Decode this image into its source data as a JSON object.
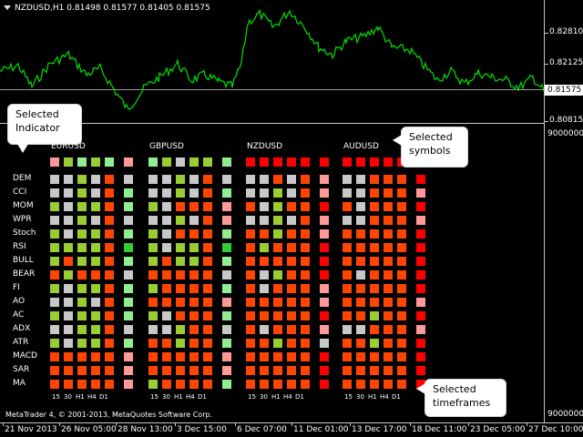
{
  "price_pane": {
    "title": "NZDUSD,H1  0.81498 0.81577 0.81405 0.81575",
    "axis_labels": [
      "0.82810",
      "0.82125",
      "0.80815"
    ],
    "current_price": "0.81575",
    "line_color": "#00e000"
  },
  "indicator_pane": {
    "axis_top": "9000000",
    "axis_bottom": "9000000",
    "copyright": "MetaTrader 4, © 2001-2013, MetaQuotes Software Corp.",
    "indicators": [
      "DEM",
      "CCI",
      "MOM",
      "WPR",
      "Stoch",
      "RSI",
      "BULL",
      "BEAR",
      "FI",
      "AO",
      "AC",
      "ADX",
      "ATR",
      "MACD",
      "SAR",
      "MA"
    ],
    "timeframes": [
      "15",
      "30",
      "H1",
      "H4",
      "D1"
    ],
    "colors": {
      "G": "#9acd32",
      "L": "#90ee90",
      "A": "#33cc33",
      "O": "#ff4500",
      "R": "#ff0000",
      "D": "#dd0000",
      "P": "#ff9999",
      "S": "#c8c8c8",
      "W": "#d8d8d8"
    },
    "symbols": [
      {
        "name": "EURUSD",
        "top": "PGLGLP",
        "rows": [
          "SSGSOS",
          "SSGSOL",
          "GSGGOL",
          "SSGSOS",
          "GSGGOL",
          "GGGGOA",
          "GOGGOL",
          "OGOOOS",
          "GSGGOL",
          "SSGSOL",
          "GSGGOL",
          "SSGGOS",
          "GSGGOL",
          "OOOOOP",
          "OOOOOP",
          "OOOOOP"
        ]
      },
      {
        "name": "GBPUSD",
        "top": "LGSGGL",
        "rows": [
          "SSGSOS",
          "SSGSOL",
          "GSOOOP",
          "SSGSOP",
          "GSOOOL",
          "GSGGOA",
          "GOGGOL",
          "OOOOOS",
          "GOOOOL",
          "OOOOOP",
          "GSOOOL",
          "SSGOOS",
          "OOGOOL",
          "OOOOOP",
          "OOOOOP",
          "GOOOOL"
        ]
      },
      {
        "name": "NZDUSD",
        "top": "RRRRRR",
        "rows": [
          "SSOSOP",
          "SSGSOP",
          "OSGOOR",
          "SSGSOP",
          "OOGOOP",
          "OGOOOR",
          "OOOOOR",
          "OSGOOR",
          "OSOOOP",
          "OOOOOP",
          "OOOOOR",
          "OSOOOP",
          "OOGOOS",
          "OOOOOR",
          "OOOOOR",
          "OOOOOR"
        ]
      },
      {
        "name": "AUDUSD",
        "top": "RRRRRR",
        "rows": [
          "SSOOOR",
          "SSOOOP",
          "OSOOOR",
          "SSOOOP",
          "OOOOOR",
          "OOOOOR",
          "OOOOOR",
          "OSOOOR",
          "OOOOOR",
          "OOOOOP",
          "OOGOOR",
          "SSOOOP",
          "OOGOOR",
          "OOOOOR",
          "OOOOOR",
          "OOOOOR"
        ]
      }
    ]
  },
  "callouts": {
    "indicator": [
      "Selected",
      "Indicator"
    ],
    "symbols": [
      "Selected",
      "symbols"
    ],
    "timeframes": [
      "Selected",
      "timeframes"
    ]
  },
  "time_axis": {
    "labels": [
      "21 Nov 2013",
      "26 Nov 05:00",
      "28 Nov 13:00",
      "3 Dec 15:00",
      "6 Dec 07:00",
      "11 Dec 01:00",
      "13 Dec 17:00",
      "18 Dec 11:00",
      "23 Dec 05:00",
      "27 Dec 10:00"
    ]
  }
}
